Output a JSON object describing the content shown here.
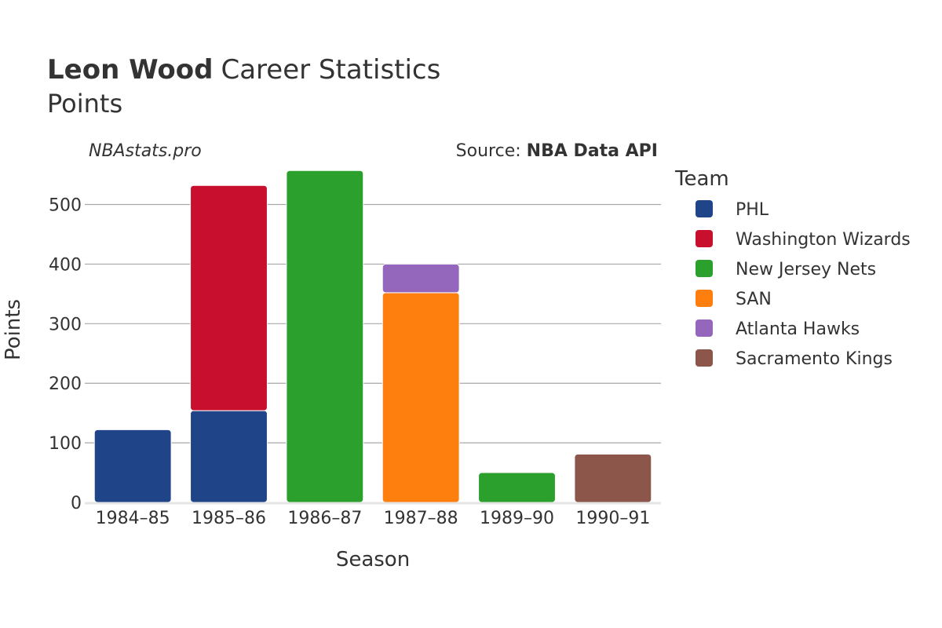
{
  "header": {
    "player": "Leon Wood",
    "title_rest": "Career Statistics",
    "subtitle": "Points"
  },
  "site": "NBAstats.pro",
  "source": {
    "prefix": "Source:",
    "name": "NBA Data API"
  },
  "chart_data": {
    "type": "bar",
    "stacked": true,
    "xlabel": "Season",
    "ylabel": "Points",
    "ylim": [
      0,
      560
    ],
    "yticks": [
      0,
      100,
      200,
      300,
      400,
      500
    ],
    "grid": true,
    "legend_title": "Team",
    "legend_position": "right",
    "categories": [
      "1984–85",
      "1985–86",
      "1986–87",
      "1987–88",
      "1989–90",
      "1990–91"
    ],
    "series": [
      {
        "name": "PHL",
        "color": "#1f4488",
        "values": [
          122,
          154,
          0,
          0,
          0,
          0
        ]
      },
      {
        "name": "Washington Wizards",
        "color": "#c8102e",
        "values": [
          0,
          378,
          0,
          0,
          0,
          0
        ]
      },
      {
        "name": "New Jersey Nets",
        "color": "#2ca02c",
        "values": [
          0,
          0,
          557,
          0,
          50,
          0
        ]
      },
      {
        "name": "SAN",
        "color": "#ff7f0e",
        "values": [
          0,
          0,
          0,
          352,
          0,
          0
        ]
      },
      {
        "name": "Atlanta Hawks",
        "color": "#9467bd",
        "values": [
          0,
          0,
          0,
          48,
          0,
          0
        ]
      },
      {
        "name": "Sacramento Kings",
        "color": "#8c564b",
        "values": [
          0,
          0,
          0,
          0,
          0,
          81
        ]
      }
    ]
  }
}
